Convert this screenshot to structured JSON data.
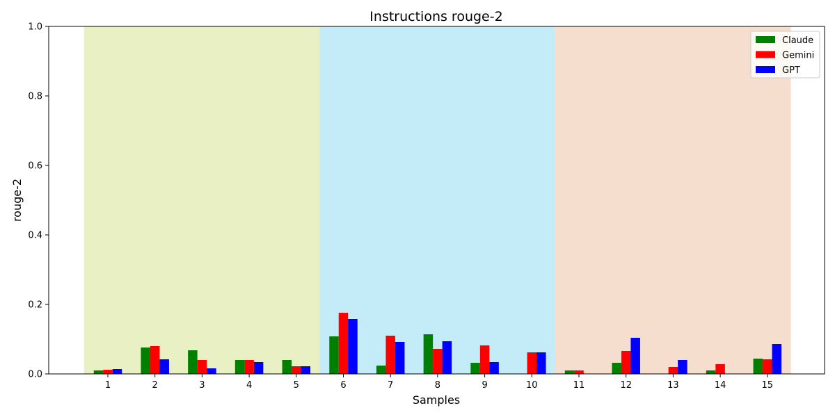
{
  "chart_data": {
    "type": "bar",
    "title": "Instructions rouge-2",
    "xlabel": "Samples",
    "ylabel": "rouge-2",
    "ylim": [
      0,
      1.0
    ],
    "yticks": [
      "0.0",
      "0.2",
      "0.4",
      "0.6",
      "0.8",
      "1.0"
    ],
    "categories": [
      "1",
      "2",
      "3",
      "4",
      "5",
      "6",
      "7",
      "8",
      "9",
      "10",
      "11",
      "12",
      "13",
      "14",
      "15"
    ],
    "series": [
      {
        "name": "Claude",
        "color": "#008000",
        "values": [
          0.01,
          0.076,
          0.068,
          0.04,
          0.04,
          0.108,
          0.024,
          0.114,
          0.032,
          0.0,
          0.01,
          0.032,
          0.0,
          0.01,
          0.044
        ]
      },
      {
        "name": "Gemini",
        "color": "#ff0000",
        "values": [
          0.012,
          0.08,
          0.04,
          0.04,
          0.022,
          0.176,
          0.11,
          0.072,
          0.082,
          0.062,
          0.01,
          0.066,
          0.02,
          0.028,
          0.042
        ]
      },
      {
        "name": "GPT",
        "color": "#0000ff",
        "values": [
          0.014,
          0.042,
          0.016,
          0.034,
          0.022,
          0.158,
          0.092,
          0.094,
          0.034,
          0.062,
          0.0,
          0.104,
          0.04,
          0.0,
          0.086
        ]
      }
    ],
    "background_bands": [
      {
        "from": "1",
        "to": "5",
        "color": "#e8f0c4"
      },
      {
        "from": "6",
        "to": "10",
        "color": "#c4ecf8"
      },
      {
        "from": "11",
        "to": "15",
        "color": "#f6dece"
      }
    ],
    "legend": "top-right",
    "grid": false
  }
}
